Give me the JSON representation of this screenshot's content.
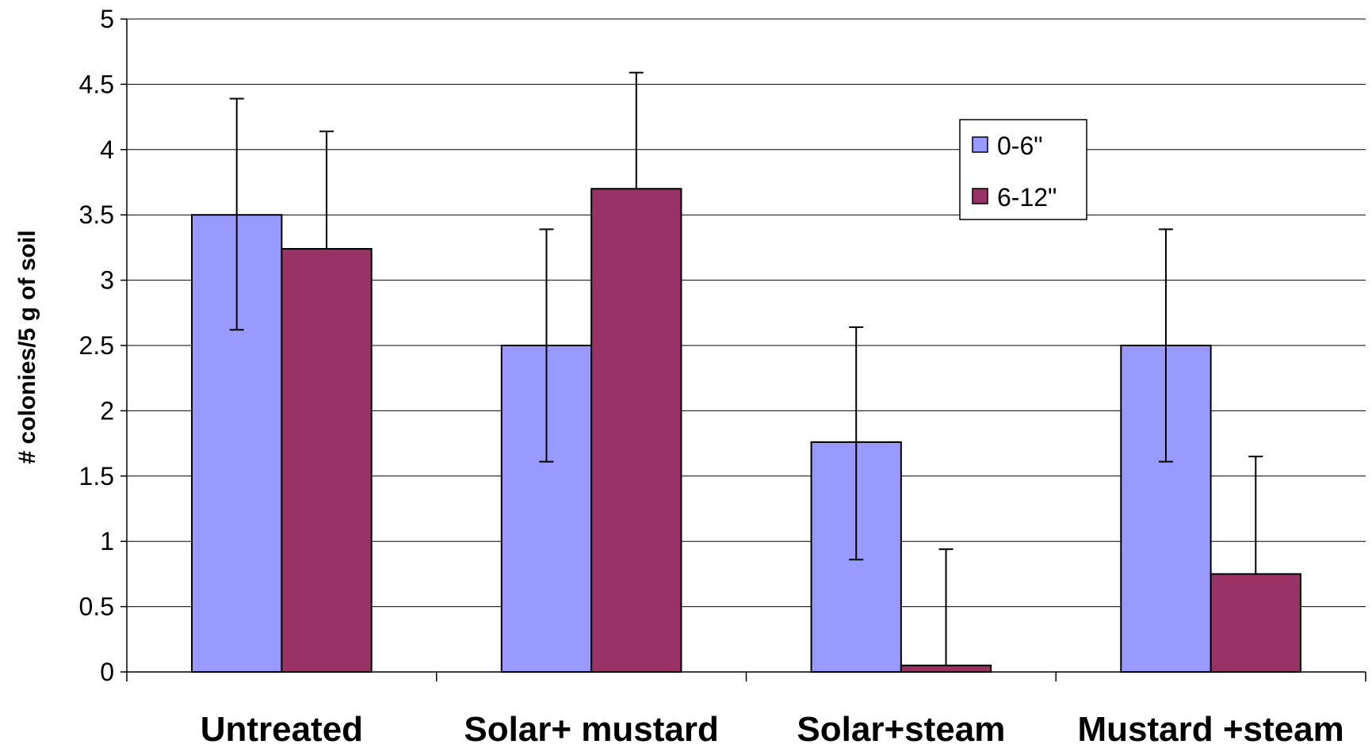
{
  "chart_data": {
    "type": "bar",
    "title": "",
    "xlabel": "",
    "ylabel": "# colonies/5 g of soil",
    "ylim": [
      0,
      5
    ],
    "yticks": [
      "0",
      "0.5",
      "1",
      "1.5",
      "2",
      "2.5",
      "3",
      "3.5",
      "4",
      "4.5",
      "5"
    ],
    "categories": [
      "Untreated",
      "Solar+ mustard",
      "Solar+steam",
      "Mustard +steam"
    ],
    "series": [
      {
        "name": "0-6\"",
        "color": "#9999ff",
        "values": [
          3.5,
          2.5,
          1.76,
          2.5
        ],
        "err_low": [
          2.62,
          1.61,
          0.86,
          1.61
        ],
        "err_high": [
          4.39,
          3.39,
          2.64,
          3.39
        ]
      },
      {
        "name": "6-12\"",
        "color": "#993366",
        "values": [
          3.24,
          3.7,
          0.05,
          0.75
        ],
        "err_low": [
          3.24,
          3.7,
          0.05,
          0.75
        ],
        "err_high": [
          4.14,
          4.59,
          0.94,
          1.65
        ]
      }
    ],
    "grid": true,
    "legend": "top-right"
  }
}
